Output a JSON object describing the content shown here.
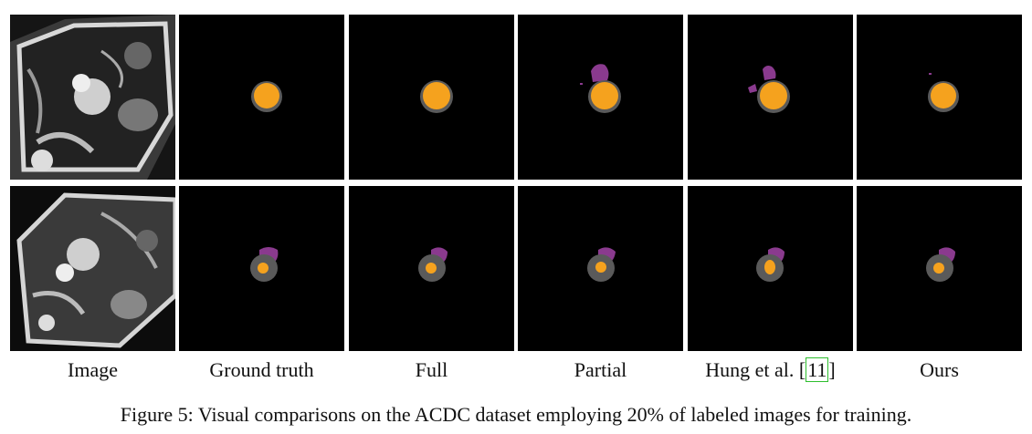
{
  "columns": [
    {
      "label": "Image"
    },
    {
      "label": "Ground truth"
    },
    {
      "label": "Full"
    },
    {
      "label": "Partial"
    },
    {
      "label": "Hung et al. [",
      "citation": "11",
      "suffix": "]"
    },
    {
      "label": "Ours"
    }
  ],
  "caption": "Figure 5: Visual comparisons on the ACDC dataset employing 20% of labeled images for training.",
  "colors": {
    "background": "#000000",
    "myocardium": "#5a5a5a",
    "left_ventricle": "#f5a21e",
    "right_ventricle": "#8a3a8e",
    "citation_box": "#2ebf2e"
  }
}
